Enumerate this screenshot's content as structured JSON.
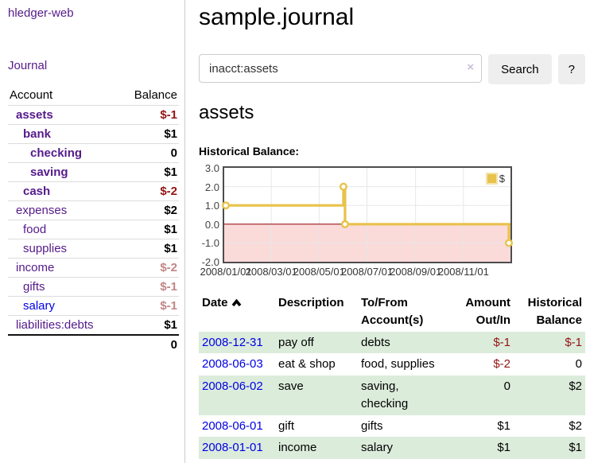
{
  "app": {
    "brand": "hledger-web"
  },
  "sidebar": {
    "journal_label": "Journal",
    "accounts_table": {
      "headers": {
        "account": "Account",
        "balance": "Balance"
      },
      "rows": [
        {
          "name": "assets",
          "indent": 1,
          "bold": true,
          "balance": "$-1",
          "balance_tone": "negative-strong"
        },
        {
          "name": "bank",
          "indent": 2,
          "bold": true,
          "balance": "$1",
          "balance_tone": "normal"
        },
        {
          "name": "checking",
          "indent": 3,
          "bold": true,
          "balance": "0",
          "balance_tone": "normal"
        },
        {
          "name": "saving",
          "indent": 3,
          "bold": true,
          "balance": "$1",
          "balance_tone": "normal"
        },
        {
          "name": "cash",
          "indent": 2,
          "bold": true,
          "balance": "$-2",
          "balance_tone": "negative-strong"
        },
        {
          "name": "expenses",
          "indent": 1,
          "bold": false,
          "balance": "$2",
          "balance_tone": "normal"
        },
        {
          "name": "food",
          "indent": 2,
          "bold": false,
          "balance": "$1",
          "balance_tone": "normal"
        },
        {
          "name": "supplies",
          "indent": 2,
          "bold": false,
          "balance": "$1",
          "balance_tone": "normal"
        },
        {
          "name": "income",
          "indent": 1,
          "bold": false,
          "balance": "$-2",
          "balance_tone": "negative-soft"
        },
        {
          "name": "gifts",
          "indent": 2,
          "bold": false,
          "balance": "$-1",
          "balance_tone": "negative-soft"
        },
        {
          "name": "salary",
          "indent": 2,
          "bold": false,
          "balance": "$-1",
          "balance_tone": "negative-soft",
          "link_color": "blue"
        },
        {
          "name": "liabilities:debts",
          "indent": 1,
          "bold": false,
          "balance": "$1",
          "balance_tone": "normal"
        }
      ],
      "total": "0"
    }
  },
  "header": {
    "title": "sample.journal"
  },
  "search": {
    "value": "inacct:assets",
    "clear_icon": "×",
    "button_label": "Search",
    "help_label": "?"
  },
  "account_page": {
    "heading": "assets",
    "chart_label": "Historical Balance:"
  },
  "chart_data": {
    "type": "line",
    "step": true,
    "title": "Historical Balance:",
    "x_range": [
      "2008-01-01",
      "2008-12-31"
    ],
    "ylim": [
      -2,
      3
    ],
    "y_ticks": [
      3,
      2,
      1,
      0,
      -1,
      -2
    ],
    "x_tick_labels": [
      "2008/01/01",
      "2008/03/01",
      "2008/05/01",
      "2008/07/01",
      "2008/09/01",
      "2008/11/01"
    ],
    "series": [
      {
        "name": "$",
        "color": "#e8c24a",
        "points": [
          {
            "x": "2008-01-01",
            "y": 1
          },
          {
            "x": "2008-06-01",
            "y": 2
          },
          {
            "x": "2008-06-03",
            "y": 0
          },
          {
            "x": "2008-12-31",
            "y": -1
          }
        ]
      }
    ],
    "legend_position": "top-right",
    "grid": true,
    "negative_region_color": "#fbdada",
    "zero_line_color": "#8b0000"
  },
  "register_table": {
    "headers": [
      {
        "text": "Date",
        "sort": "asc"
      },
      {
        "text": "Description"
      },
      {
        "line1": "To/From",
        "line2": "Account(s)"
      },
      {
        "line1": "Amount",
        "line2": "Out/In",
        "align": "right"
      },
      {
        "line1": "Historical",
        "line2": "Balance",
        "align": "right"
      }
    ],
    "rows": [
      {
        "date": "2008-12-31",
        "description": "pay off",
        "accounts": "debts",
        "amount": "$-1",
        "amount_negative": true,
        "balance": "$-1",
        "balance_negative": true
      },
      {
        "date": "2008-06-03",
        "description": "eat & shop",
        "accounts": "food, supplies",
        "amount": "$-2",
        "amount_negative": true,
        "balance": "0",
        "balance_negative": false
      },
      {
        "date": "2008-06-02",
        "description": "save",
        "accounts": "saving, checking",
        "amount": "0",
        "amount_negative": false,
        "balance": "$2",
        "balance_negative": false
      },
      {
        "date": "2008-06-01",
        "description": "gift",
        "accounts": "gifts",
        "amount": "$1",
        "amount_negative": false,
        "balance": "$2",
        "balance_negative": false
      },
      {
        "date": "2008-01-01",
        "description": "income",
        "accounts": "salary",
        "amount": "$1",
        "amount_negative": false,
        "balance": "$1",
        "balance_negative": false
      }
    ]
  }
}
